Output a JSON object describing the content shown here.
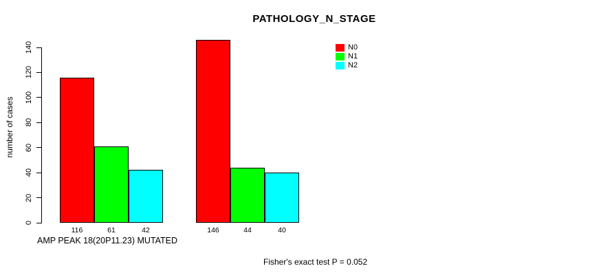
{
  "chart_data": {
    "type": "bar",
    "title": "PATHOLOGY_N_STAGE",
    "ylabel": "number of cases",
    "xlabel": "AMP PEAK 18(20P11.23) MUTATED",
    "annotation": "Fisher's exact test P = 0.052",
    "ylim": [
      0,
      140
    ],
    "yticks": [
      0,
      20,
      40,
      60,
      80,
      100,
      120,
      140
    ],
    "series": [
      "N0",
      "N1",
      "N2"
    ],
    "colors": [
      "#ff0000",
      "#00ff00",
      "#00ffff"
    ],
    "groups": [
      {
        "values": [
          116,
          61,
          42
        ]
      },
      {
        "values": [
          146,
          44,
          40
        ]
      }
    ],
    "legend": [
      {
        "label": "N0",
        "color": "#ff0000"
      },
      {
        "label": "N1",
        "color": "#00ff00"
      },
      {
        "label": "N2",
        "color": "#00ffff"
      }
    ],
    "legend_position": "top-right",
    "grid": false
  }
}
